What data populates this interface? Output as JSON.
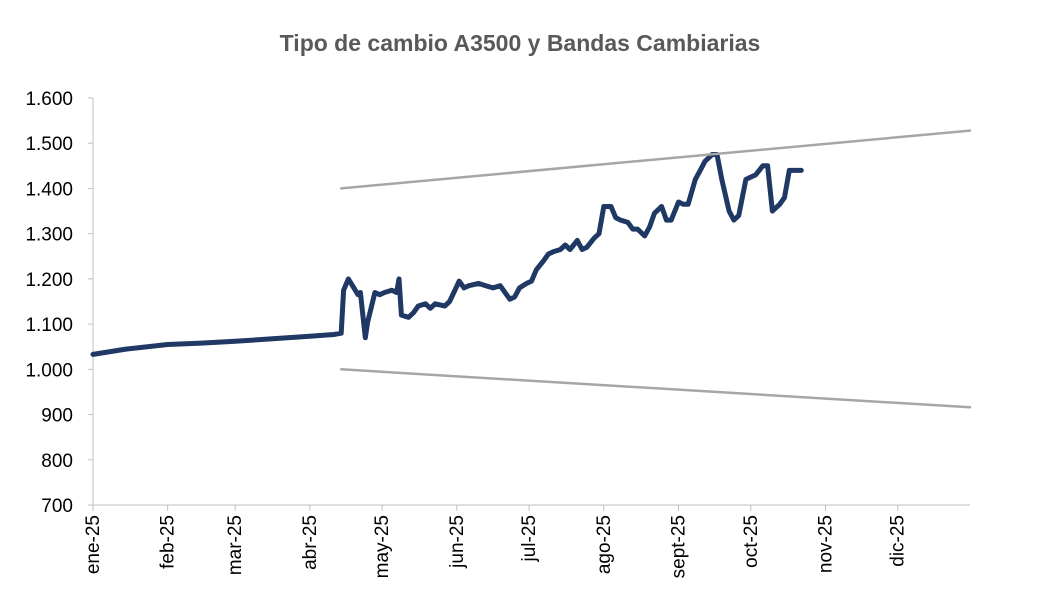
{
  "chart_data": {
    "type": "line",
    "title": "Tipo de cambio A3500 y Bandas Cambiarias",
    "xlabel": "",
    "ylabel": "",
    "ylim": [
      700,
      1600
    ],
    "yticks": [
      700,
      800,
      900,
      1000,
      1100,
      1200,
      1300,
      1400,
      1500,
      1600
    ],
    "ytick_labels": [
      "700",
      "800",
      "900",
      "1.000",
      "1.100",
      "1.200",
      "1.300",
      "1.400",
      "1.500",
      "1.600"
    ],
    "xlim": [
      "2025-01-01",
      "2025-12-31"
    ],
    "xticks": [
      "2025-01-01",
      "2025-02-01",
      "2025-03-01",
      "2025-04-01",
      "2025-05-01",
      "2025-06-01",
      "2025-07-01",
      "2025-08-01",
      "2025-09-01",
      "2025-10-01",
      "2025-11-01",
      "2025-12-01"
    ],
    "xtick_labels": [
      "ene-25",
      "feb-25",
      "mar-25",
      "abr-25",
      "may-25",
      "jun-25",
      "jul-25",
      "ago-25",
      "sept-25",
      "oct-25",
      "nov-25",
      "dic-25"
    ],
    "grid": false,
    "legend": "none",
    "series": [
      {
        "color": "#1f3864",
        "x": [
          "2025-01-01",
          "2025-01-15",
          "2025-02-01",
          "2025-02-15",
          "2025-03-01",
          "2025-03-15",
          "2025-04-01",
          "2025-04-11",
          "2025-04-14",
          "2025-04-15",
          "2025-04-17",
          "2025-04-21",
          "2025-04-22",
          "2025-04-24",
          "2025-04-25",
          "2025-04-28",
          "2025-04-30",
          "2025-05-02",
          "2025-05-05",
          "2025-05-07",
          "2025-05-08",
          "2025-05-09",
          "2025-05-12",
          "2025-05-14",
          "2025-05-16",
          "2025-05-19",
          "2025-05-21",
          "2025-05-23",
          "2025-05-27",
          "2025-05-29",
          "2025-06-02",
          "2025-06-04",
          "2025-06-06",
          "2025-06-10",
          "2025-06-13",
          "2025-06-16",
          "2025-06-19",
          "2025-06-23",
          "2025-06-25",
          "2025-06-27",
          "2025-06-30",
          "2025-07-02",
          "2025-07-04",
          "2025-07-07",
          "2025-07-09",
          "2025-07-11",
          "2025-07-14",
          "2025-07-16",
          "2025-07-18",
          "2025-07-21",
          "2025-07-23",
          "2025-07-25",
          "2025-07-28",
          "2025-07-30",
          "2025-08-01",
          "2025-08-04",
          "2025-08-06",
          "2025-08-08",
          "2025-08-11",
          "2025-08-13",
          "2025-08-15",
          "2025-08-18",
          "2025-08-20",
          "2025-08-22",
          "2025-08-25",
          "2025-08-27",
          "2025-08-29",
          "2025-09-01",
          "2025-09-03",
          "2025-09-05",
          "2025-09-08",
          "2025-09-10",
          "2025-09-12",
          "2025-09-15",
          "2025-09-17",
          "2025-09-19",
          "2025-09-22",
          "2025-09-24",
          "2025-09-26",
          "2025-09-29",
          "2025-10-01",
          "2025-10-03",
          "2025-10-06",
          "2025-10-08",
          "2025-10-10",
          "2025-10-13",
          "2025-10-15",
          "2025-10-17",
          "2025-10-20",
          "2025-10-22"
        ],
        "values": [
          1033,
          1045,
          1055,
          1058,
          1062,
          1067,
          1073,
          1077,
          1080,
          1175,
          1200,
          1165,
          1170,
          1070,
          1105,
          1170,
          1165,
          1170,
          1175,
          1170,
          1200,
          1120,
          1115,
          1125,
          1140,
          1145,
          1135,
          1145,
          1140,
          1150,
          1195,
          1180,
          1185,
          1190,
          1185,
          1180,
          1185,
          1155,
          1160,
          1180,
          1190,
          1195,
          1220,
          1240,
          1255,
          1260,
          1265,
          1275,
          1265,
          1285,
          1265,
          1270,
          1290,
          1300,
          1360,
          1360,
          1335,
          1330,
          1325,
          1310,
          1310,
          1295,
          1315,
          1345,
          1360,
          1330,
          1330,
          1370,
          1365,
          1365,
          1420,
          1440,
          1460,
          1475,
          1475,
          1420,
          1350,
          1330,
          1340,
          1420,
          1425,
          1430,
          1450,
          1450,
          1350,
          1365,
          1380,
          1440,
          1440,
          1440
        ]
      },
      {
        "color": "#a6a6a6",
        "x": [
          "2025-04-14",
          "2025-12-31"
        ],
        "values": [
          1400,
          1528
        ]
      },
      {
        "color": "#a6a6a6",
        "x": [
          "2025-04-14",
          "2025-12-31"
        ],
        "values": [
          1000,
          916
        ]
      }
    ]
  }
}
